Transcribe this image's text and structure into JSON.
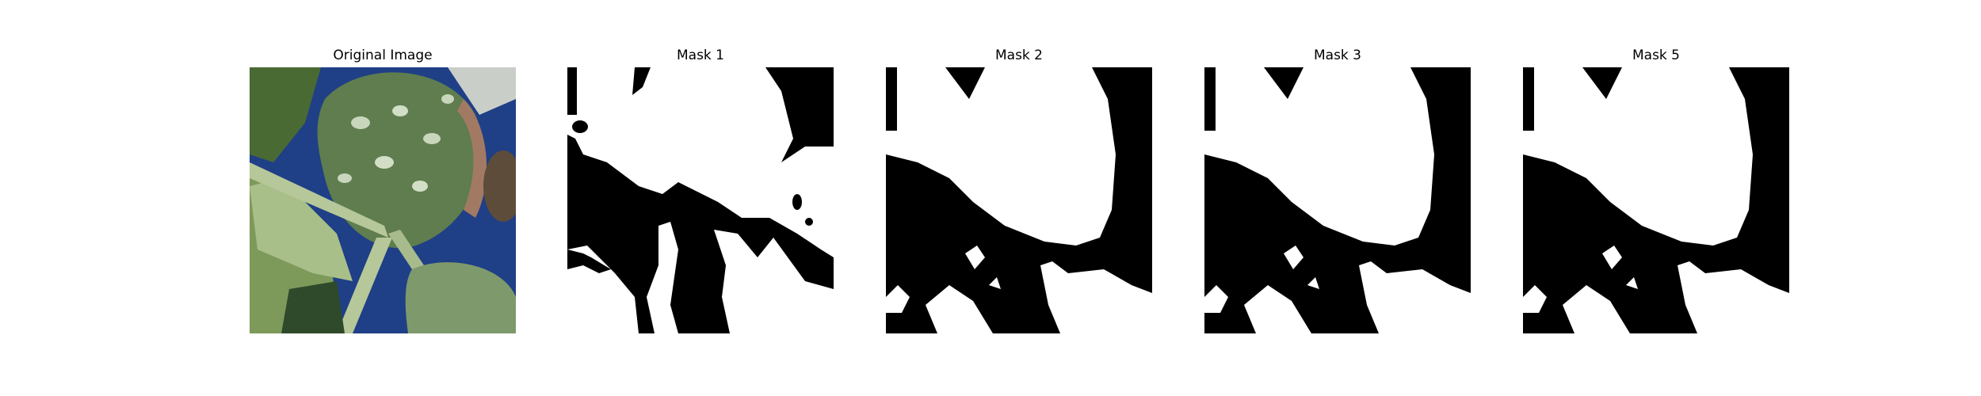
{
  "panels": [
    {
      "title": "Original Image"
    },
    {
      "title": "Mask 1"
    },
    {
      "title": "Mask 2"
    },
    {
      "title": "Mask 3"
    },
    {
      "title": "Mask 5"
    }
  ],
  "colors": {
    "background": "#ffffff",
    "mask_foreground": "#ffffff",
    "mask_background": "#000000",
    "leaf_green": "#5f7d4e",
    "sky_blue": "#1f3f86"
  }
}
